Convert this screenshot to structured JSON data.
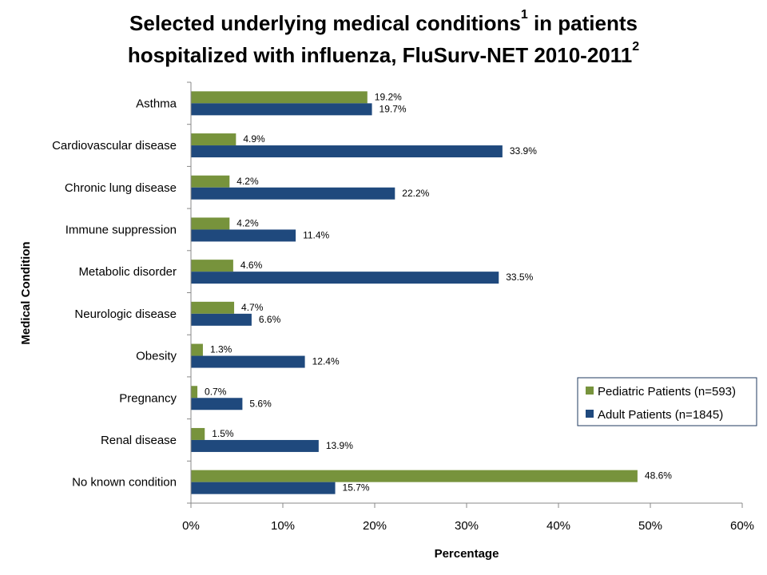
{
  "chart_data": {
    "type": "bar",
    "orientation": "horizontal",
    "title_line1": "Selected underlying medical conditions",
    "title_sup1": "1",
    "title_line1_end": " in patients",
    "title_line2": "hospitalized with influenza, FluSurv-NET 2010-2011",
    "title_sup2": "2",
    "xlabel": "Percentage",
    "ylabel": "Medical Condition",
    "xlim": [
      0,
      60
    ],
    "xticks": [
      "0%",
      "10%",
      "20%",
      "30%",
      "40%",
      "50%",
      "60%"
    ],
    "grid": false,
    "legend_position": "right",
    "categories": [
      "Asthma",
      "Cardiovascular disease",
      "Chronic lung disease",
      "Immune suppression",
      "Metabolic disorder",
      "Neurologic disease",
      "Obesity",
      "Pregnancy",
      "Renal disease",
      "No known condition"
    ],
    "series": [
      {
        "name": "Pediatric Patients (n=593)",
        "color": "#77933C",
        "values": [
          19.2,
          4.9,
          4.2,
          4.2,
          4.6,
          4.7,
          1.3,
          0.7,
          1.5,
          48.6
        ],
        "labels": [
          "19.2%",
          "4.9%",
          "4.2%",
          "4.2%",
          "4.6%",
          "4.7%",
          "1.3%",
          "0.7%",
          "1.5%",
          "48.6%"
        ]
      },
      {
        "name": "Adult Patients (n=1845)",
        "color": "#1F497D",
        "values": [
          19.7,
          33.9,
          22.2,
          11.4,
          33.5,
          6.6,
          12.4,
          5.6,
          13.9,
          15.7
        ],
        "labels": [
          "19.7%",
          "33.9%",
          "22.2%",
          "11.4%",
          "33.5%",
          "6.6%",
          "12.4%",
          "5.6%",
          "13.9%",
          "15.7%"
        ]
      }
    ]
  }
}
